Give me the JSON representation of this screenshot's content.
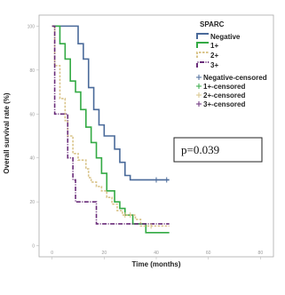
{
  "chart_data": {
    "type": "line",
    "subtype": "kaplan-meier",
    "xlabel": "Time (months)",
    "ylabel": "Overall survival rate (%)",
    "xlim": [
      -5,
      85
    ],
    "ylim": [
      -5,
      105
    ],
    "x_ticks": [
      0,
      20,
      40,
      60,
      80
    ],
    "y_ticks": [
      0,
      20,
      40,
      60,
      80,
      100
    ],
    "grid": false,
    "legend": {
      "title": "SPARC",
      "placement": "top-right",
      "entries": [
        "Negative",
        "1+",
        "2+",
        "3+",
        "Negative-censored",
        "1+-censored",
        "2+-censored",
        "3+-censored"
      ]
    },
    "annotation": "p=0.039",
    "series": [
      {
        "name": "Negative",
        "color": "#4a6a9a",
        "steps": [
          [
            0,
            100
          ],
          [
            10,
            92
          ],
          [
            12,
            85
          ],
          [
            14,
            72
          ],
          [
            16,
            62
          ],
          [
            18,
            55
          ],
          [
            20,
            50
          ],
          [
            24,
            44
          ],
          [
            26,
            38
          ],
          [
            28,
            32
          ],
          [
            30,
            30
          ],
          [
            45,
            30
          ]
        ],
        "censored_x": [
          40,
          44
        ]
      },
      {
        "name": "1+",
        "color": "#33aa44",
        "steps": [
          [
            0,
            100
          ],
          [
            3,
            92
          ],
          [
            5,
            85
          ],
          [
            7,
            75
          ],
          [
            9,
            70
          ],
          [
            11,
            62
          ],
          [
            13,
            54
          ],
          [
            15,
            47
          ],
          [
            17,
            40
          ],
          [
            19,
            33
          ],
          [
            21,
            25
          ],
          [
            24,
            20
          ],
          [
            26,
            17
          ],
          [
            28,
            14
          ],
          [
            31,
            10
          ],
          [
            36,
            6
          ],
          [
            45,
            6
          ]
        ],
        "censored_x": []
      },
      {
        "name": "2+",
        "color": "#d9c48a",
        "steps": [
          [
            0,
            100
          ],
          [
            1,
            82
          ],
          [
            3,
            67
          ],
          [
            5,
            57
          ],
          [
            6,
            50
          ],
          [
            8,
            42
          ],
          [
            10,
            39
          ],
          [
            13,
            35
          ],
          [
            14,
            31
          ],
          [
            15,
            29
          ],
          [
            17,
            27
          ],
          [
            19,
            25
          ],
          [
            21,
            22
          ],
          [
            23,
            19
          ],
          [
            25,
            16
          ],
          [
            27,
            14
          ],
          [
            32,
            12
          ],
          [
            34,
            9
          ],
          [
            45,
            9
          ]
        ],
        "censored_x": [
          28,
          30,
          38
        ]
      },
      {
        "name": "3+",
        "color": "#6a2d7a",
        "steps": [
          [
            0,
            100
          ],
          [
            1,
            60
          ],
          [
            6,
            40
          ],
          [
            8,
            30
          ],
          [
            9,
            20
          ],
          [
            15,
            20
          ],
          [
            17,
            10
          ],
          [
            45,
            10
          ]
        ],
        "censored_x": []
      }
    ]
  }
}
